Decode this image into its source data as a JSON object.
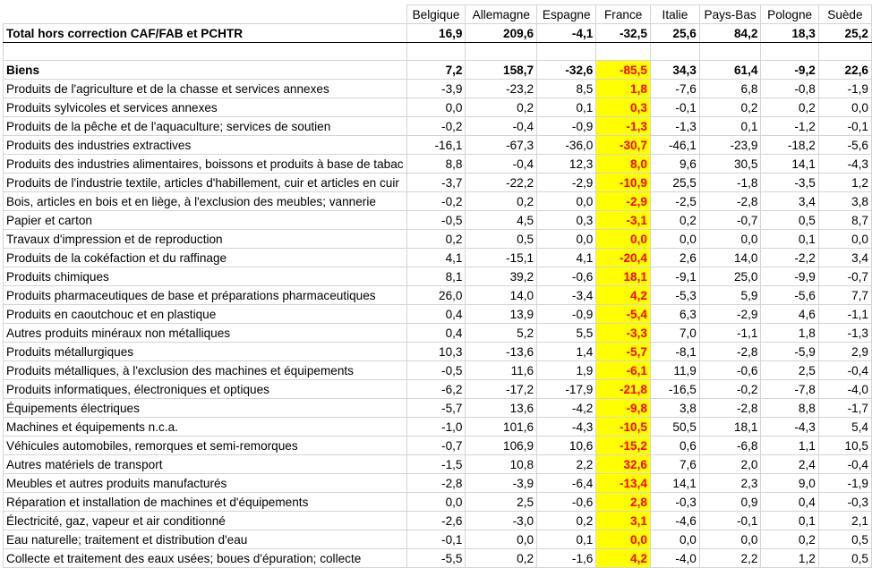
{
  "columns": [
    "Belgique",
    "Allemagne",
    "Espagne",
    "France",
    "Italie",
    "Pays-Bas",
    "Pologne",
    "Suède"
  ],
  "total_row": {
    "label": "Total hors correction CAF/FAB et PCHTR",
    "values": [
      "16,9",
      "209,6",
      "-4,1",
      "-32,5",
      "25,6",
      "84,2",
      "18,3",
      "25,2"
    ]
  },
  "rows": [
    {
      "label": "Biens",
      "values": [
        "7,2",
        "158,7",
        "-32,6",
        "-85,5",
        "34,3",
        "61,4",
        "-9,2",
        "22,6"
      ]
    },
    {
      "label": "Produits de l'agriculture et de la chasse et services annexes",
      "values": [
        "-3,9",
        "-23,2",
        "8,5",
        "1,8",
        "-7,6",
        "6,8",
        "-0,8",
        "-1,9"
      ]
    },
    {
      "label": "Produits sylvicoles et services annexes",
      "values": [
        "0,0",
        "0,2",
        "0,1",
        "0,3",
        "-0,1",
        "0,2",
        "0,2",
        "0,0"
      ]
    },
    {
      "label": "Produits de la pêche et de l'aquaculture; services de soutien",
      "values": [
        "-0,2",
        "-0,4",
        "-0,9",
        "-1,3",
        "-1,3",
        "0,1",
        "-1,2",
        "-0,1"
      ]
    },
    {
      "label": "Produits des industries extractives",
      "values": [
        "-16,1",
        "-67,3",
        "-36,0",
        "-30,7",
        "-46,1",
        "-23,9",
        "-18,2",
        "-5,6"
      ]
    },
    {
      "label": "Produits des industries alimentaires, boissons et produits à base de tabac",
      "values": [
        "8,8",
        "-0,4",
        "12,3",
        "8,0",
        "9,6",
        "30,5",
        "14,1",
        "-4,3"
      ]
    },
    {
      "label": "Produits de l'industrie textile, articles d'habillement, cuir et articles en cuir",
      "values": [
        "-3,7",
        "-22,2",
        "-2,9",
        "-10,9",
        "25,5",
        "-1,8",
        "-3,5",
        "1,2"
      ]
    },
    {
      "label": "Bois, articles en bois et en liège, à l'exclusion des meubles; vannerie",
      "values": [
        "-0,2",
        "0,2",
        "0,0",
        "-2,9",
        "-2,5",
        "-2,8",
        "3,4",
        "3,8"
      ]
    },
    {
      "label": "Papier et carton",
      "values": [
        "-0,5",
        "4,5",
        "0,3",
        "-3,1",
        "0,2",
        "-0,7",
        "0,5",
        "8,7"
      ]
    },
    {
      "label": "Travaux d'impression et de reproduction",
      "values": [
        "0,2",
        "0,5",
        "0,0",
        "0,0",
        "0,0",
        "0,0",
        "0,1",
        "0,0"
      ]
    },
    {
      "label": "Produits de la cokéfaction et du raffinage",
      "values": [
        "4,1",
        "-15,1",
        "4,1",
        "-20,4",
        "2,6",
        "14,0",
        "-2,2",
        "3,4"
      ]
    },
    {
      "label": "Produits chimiques",
      "values": [
        "8,1",
        "39,2",
        "-0,6",
        "18,1",
        "-9,1",
        "25,0",
        "-9,9",
        "-0,7"
      ]
    },
    {
      "label": "Produits pharmaceutiques de base et préparations pharmaceutiques",
      "values": [
        "26,0",
        "14,0",
        "-3,4",
        "4,2",
        "-5,3",
        "5,9",
        "-5,6",
        "7,7"
      ]
    },
    {
      "label": "Produits en caoutchouc et en plastique",
      "values": [
        "0,4",
        "13,9",
        "-0,9",
        "-5,4",
        "6,3",
        "-2,9",
        "4,6",
        "-1,1"
      ]
    },
    {
      "label": "Autres produits minéraux non métalliques",
      "values": [
        "0,4",
        "5,2",
        "5,5",
        "-3,3",
        "7,0",
        "-1,1",
        "1,8",
        "-1,3"
      ]
    },
    {
      "label": "Produits métallurgiques",
      "values": [
        "10,3",
        "-13,6",
        "1,4",
        "-5,7",
        "-8,1",
        "-2,8",
        "-5,9",
        "2,9"
      ]
    },
    {
      "label": "Produits métalliques, à l'exclusion des machines et équipements",
      "values": [
        "-0,5",
        "11,6",
        "1,9",
        "-6,1",
        "11,9",
        "-0,6",
        "2,5",
        "-0,4"
      ]
    },
    {
      "label": "Produits informatiques, électroniques et optiques",
      "values": [
        "-6,2",
        "-17,2",
        "-17,9",
        "-21,8",
        "-16,5",
        "-0,2",
        "-7,8",
        "-4,0"
      ]
    },
    {
      "label": "Équipements électriques",
      "values": [
        "-5,7",
        "13,6",
        "-4,2",
        "-9,8",
        "3,8",
        "-2,8",
        "8,8",
        "-1,7"
      ]
    },
    {
      "label": "Machines et équipements n.c.a.",
      "values": [
        "-1,0",
        "101,6",
        "-4,3",
        "-10,5",
        "50,5",
        "18,1",
        "-4,3",
        "5,4"
      ]
    },
    {
      "label": "Véhicules automobiles, remorques et semi-remorques",
      "values": [
        "-0,7",
        "106,9",
        "10,6",
        "-15,2",
        "0,6",
        "-6,8",
        "1,1",
        "10,5"
      ]
    },
    {
      "label": "Autres matériels de transport",
      "values": [
        "-1,5",
        "10,8",
        "2,2",
        "32,6",
        "7,6",
        "2,0",
        "2,4",
        "-0,4"
      ]
    },
    {
      "label": "Meubles et autres produits manufacturés",
      "values": [
        "-2,8",
        "-3,9",
        "-6,4",
        "-13,4",
        "14,1",
        "2,3",
        "9,0",
        "-1,9"
      ]
    },
    {
      "label": "Réparation et installation de machines et d'équipements",
      "values": [
        "0,0",
        "2,5",
        "-0,6",
        "2,8",
        "-0,3",
        "0,9",
        "0,4",
        "-0,3"
      ]
    },
    {
      "label": "Électricité, gaz, vapeur et air conditionné",
      "values": [
        "-2,6",
        "-3,0",
        "0,2",
        "3,1",
        "-4,6",
        "-0,1",
        "0,1",
        "2,1"
      ]
    },
    {
      "label": "Eau naturelle; traitement et distribution d'eau",
      "values": [
        "-0,1",
        "0,0",
        "0,1",
        "0,0",
        "0,0",
        "0,0",
        "0,2",
        "0,5"
      ]
    },
    {
      "label": "Collecte et traitement des eaux usées; boues d'épuration; collecte",
      "values": [
        "-5,5",
        "0,2",
        "-1,6",
        "4,2",
        "-4,0",
        "2,2",
        "1,2",
        "0,5"
      ]
    }
  ],
  "colors": {
    "highlight_fill": "#ffff00",
    "highlight_text": "#ff0000"
  }
}
